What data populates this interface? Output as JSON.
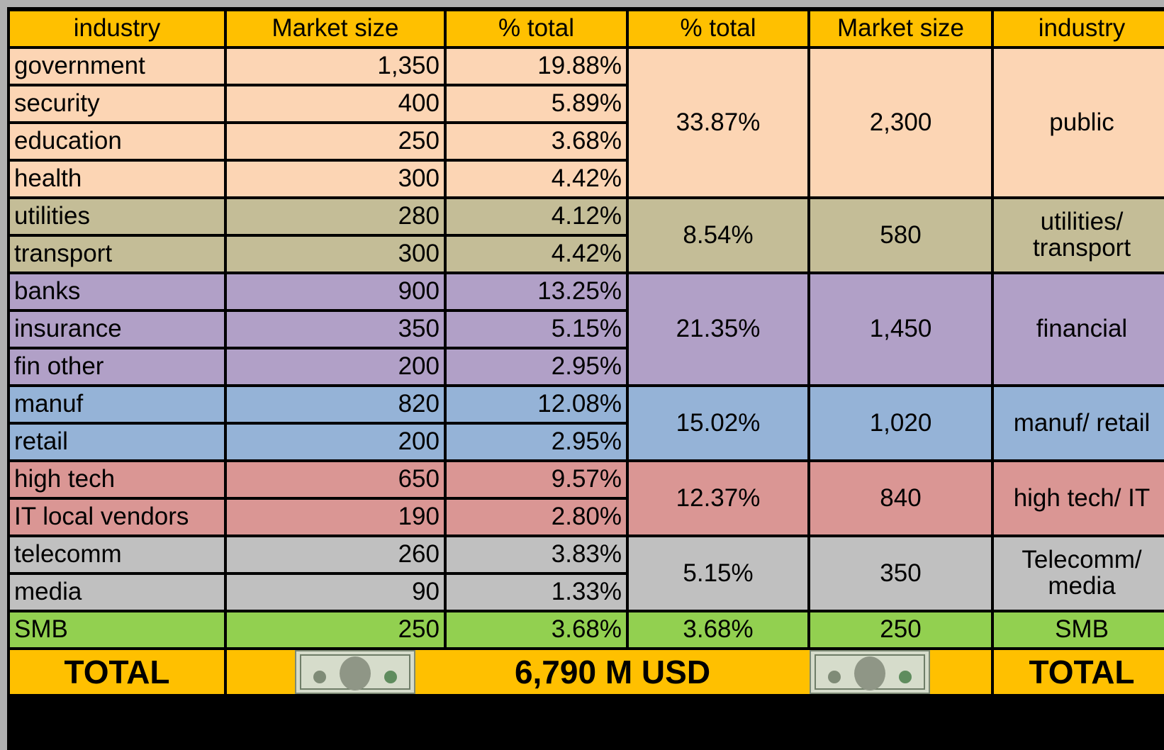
{
  "table": {
    "header": [
      "industry",
      "Market size",
      "% total",
      "% total",
      "Market size",
      "industry"
    ],
    "groups": [
      {
        "name": "public",
        "market_size": "2,300",
        "pct_total": "33.87%",
        "color": "#fcd5b4",
        "items": [
          {
            "industry": "government",
            "market_size": "1,350",
            "pct_total": "19.88%"
          },
          {
            "industry": "security",
            "market_size": "400",
            "pct_total": "5.89%"
          },
          {
            "industry": "education",
            "market_size": "250",
            "pct_total": "3.68%"
          },
          {
            "industry": "health",
            "market_size": "300",
            "pct_total": "4.42%"
          }
        ]
      },
      {
        "name": "utilities/ transport",
        "market_size": "580",
        "pct_total": "8.54%",
        "color": "#c4bd97",
        "items": [
          {
            "industry": "utilities",
            "market_size": "280",
            "pct_total": "4.12%"
          },
          {
            "industry": "transport",
            "market_size": "300",
            "pct_total": "4.42%"
          }
        ]
      },
      {
        "name": "financial",
        "market_size": "1,450",
        "pct_total": "21.35%",
        "color": "#b1a0c7",
        "items": [
          {
            "industry": "banks",
            "market_size": "900",
            "pct_total": "13.25%"
          },
          {
            "industry": "insurance",
            "market_size": "350",
            "pct_total": "5.15%"
          },
          {
            "industry": "fin other",
            "market_size": "200",
            "pct_total": "2.95%"
          }
        ]
      },
      {
        "name": "manuf/ retail",
        "market_size": "1,020",
        "pct_total": "15.02%",
        "color": "#95b3d7",
        "items": [
          {
            "industry": "manuf",
            "market_size": "820",
            "pct_total": "12.08%"
          },
          {
            "industry": "retail",
            "market_size": "200",
            "pct_total": "2.95%"
          }
        ]
      },
      {
        "name": "high tech/ IT",
        "market_size": "840",
        "pct_total": "12.37%",
        "color": "#da9694",
        "items": [
          {
            "industry": "high tech",
            "market_size": "650",
            "pct_total": "9.57%"
          },
          {
            "industry": "IT local vendors",
            "market_size": "190",
            "pct_total": "2.80%"
          }
        ]
      },
      {
        "name": "Telecomm/ media",
        "market_size": "350",
        "pct_total": "5.15%",
        "color": "#c0c0c0",
        "items": [
          {
            "industry": "telecomm",
            "market_size": "260",
            "pct_total": "3.83%"
          },
          {
            "industry": "media",
            "market_size": "90",
            "pct_total": "1.33%"
          }
        ]
      },
      {
        "name": "SMB",
        "market_size": "250",
        "pct_total": "3.68%",
        "color": "#92d050",
        "items": [
          {
            "industry": "SMB",
            "market_size": "250",
            "pct_total": "3.68%"
          }
        ]
      }
    ],
    "total": {
      "label_left": "TOTAL",
      "amount": "6,790 M USD",
      "label_right": "TOTAL"
    },
    "header_color": "#ffc000"
  }
}
